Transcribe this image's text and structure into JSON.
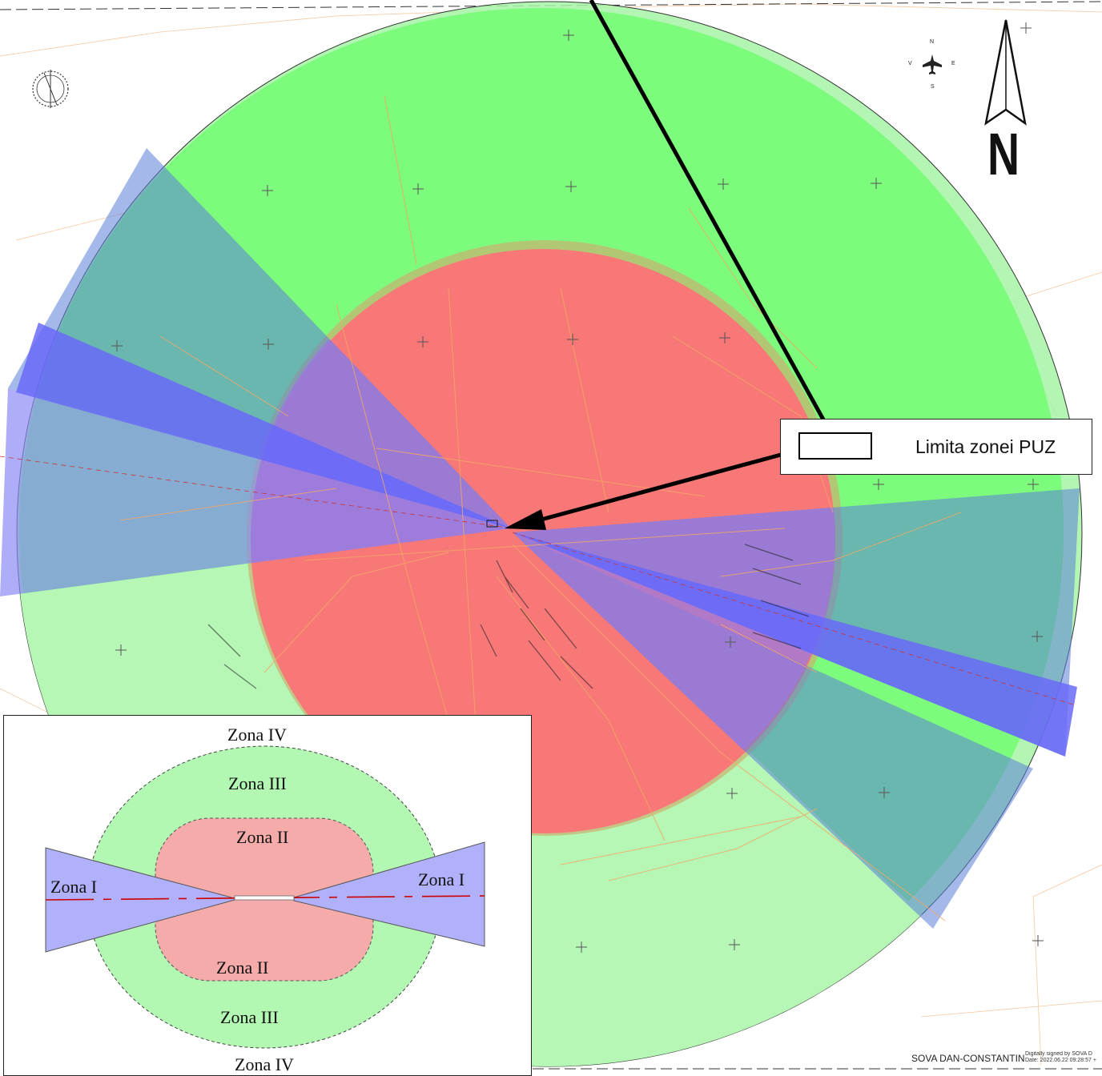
{
  "colors": {
    "zone_iii_fill": "#7dfb7d",
    "zone_iv_fill": "#b4f7b4",
    "zone_ii_fill": "#f87878",
    "zone_i_fill": "#8a8af5",
    "zone_i_dark": "#6a6af8",
    "overlap_blue_green": "#79aec4",
    "street_lines": "#f2a766",
    "legend_zone_ii": "#f6abab",
    "legend_zone_iii": "#b2f7b2",
    "legend_zone_i": "#b0b0fb",
    "runway_axis": "#cc0000"
  },
  "map": {
    "legend": {
      "label": "Limita zonei PUZ"
    },
    "north_arrow": {
      "letter": "N",
      "icon": "north-arrow-icon"
    },
    "compass_rose": {
      "n": "N",
      "s": "S",
      "e": "E",
      "w": "V",
      "icon": "airplane-icon"
    },
    "signature": {
      "name": "SOVA DAN-CONSTANTIN",
      "digital_note": "Digitally signed by SOVA D Date: 2022.06.22 09:28:57 +"
    }
  },
  "inset": {
    "zona_iv_top": "Zona IV",
    "zona_iii_top": "Zona III",
    "zona_ii_top": "Zona II",
    "zona_i_left": "Zona I",
    "zona_i_right": "Zona I",
    "zona_ii_bottom": "Zona II",
    "zona_iii_bottom": "Zona III",
    "zona_iv_bottom": "Zona IV"
  }
}
